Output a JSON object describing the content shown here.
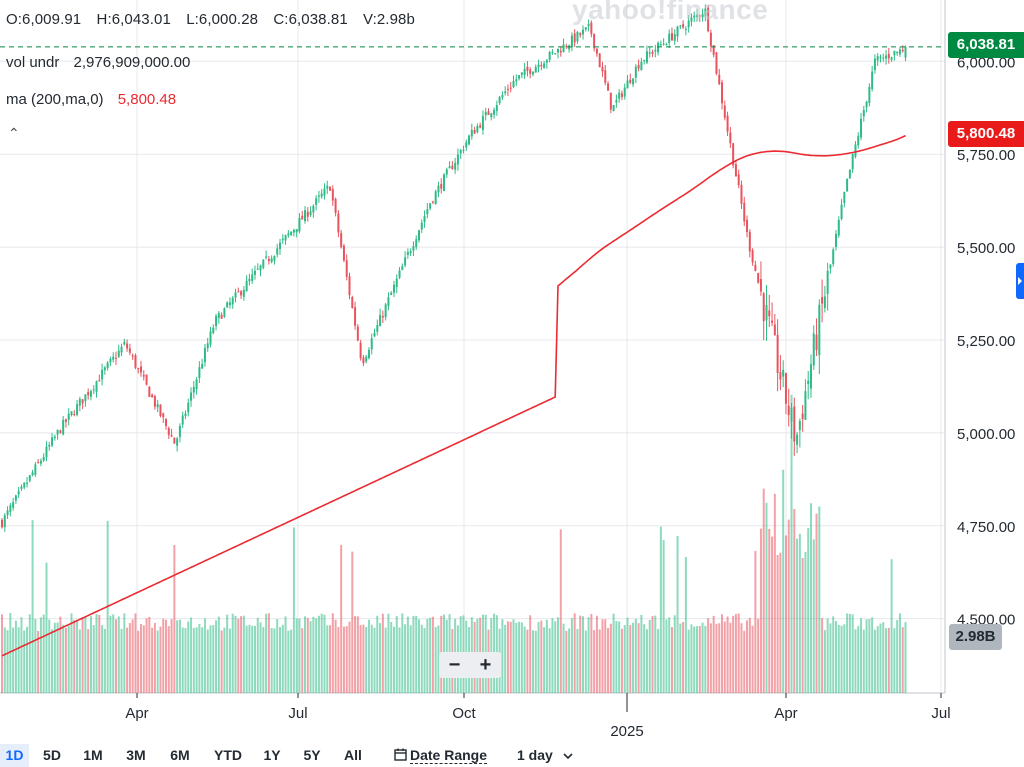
{
  "watermark": "yahoo!finance",
  "legend": {
    "open": "O:6,009.91",
    "high": "H:6,043.01",
    "low": "L:6,000.28",
    "close": "C:6,038.81",
    "volume": "V:2.98b",
    "vol_label": "vol undr",
    "vol_value": "2,976,909,000.00",
    "ma_label": "ma (200,ma,0)",
    "ma_value": "5,800.48",
    "collapse_glyph": "⌃"
  },
  "price_tags": {
    "last": "6,038.81",
    "ma": "5,800.48",
    "volume": "2.98B"
  },
  "zoom": {
    "out": "−",
    "in": "+"
  },
  "toolbar": {
    "ranges": [
      "1D",
      "5D",
      "1M",
      "3M",
      "6M",
      "YTD",
      "1Y",
      "5Y",
      "All"
    ],
    "active_range": "1D",
    "date_range_icon": "calendar-icon",
    "date_range": "Date Range",
    "interval": "1 day",
    "interval_icon": "chevron-down-icon"
  },
  "colors": {
    "up": "#2fbb86",
    "down": "#e8545e",
    "ma": "#eb2a31",
    "last_tag": "#008940",
    "ma_tag": "#e91a1a",
    "grid": "#e6e8eb"
  },
  "chart_data": {
    "type": "candlestick",
    "instrument_note": "daily OHLC with volume and 200-day moving average",
    "y_axis": {
      "ticks": [
        "4,500.00",
        "4,750.00",
        "5,000.00",
        "5,250.00",
        "5,500.00",
        "5,750.00",
        "6,000.00"
      ],
      "tick_values": [
        4500,
        4750,
        5000,
        5250,
        5500,
        5750,
        6000
      ],
      "range": [
        4300,
        6165
      ]
    },
    "x_axis": {
      "ticks": [
        "Apr",
        "Jul",
        "Oct",
        "2025",
        "Apr",
        "Jul"
      ],
      "year_label": "2025"
    },
    "series_description": "Approximate closes sampled weekly",
    "close_keypoints": [
      {
        "t": "2024-01",
        "close": 4760
      },
      {
        "t": "2024-02",
        "close": 5010
      },
      {
        "t": "2024-03-end",
        "close": 5240
      },
      {
        "t": "2024-04-19",
        "close": 4970
      },
      {
        "t": "2024-05",
        "close": 5300
      },
      {
        "t": "2024-07-16",
        "close": 5665
      },
      {
        "t": "2024-08-05",
        "close": 5190
      },
      {
        "t": "2024-09",
        "close": 5620
      },
      {
        "t": "2024-10",
        "close": 5800
      },
      {
        "t": "2024-11",
        "close": 5950
      },
      {
        "t": "2024-12-06",
        "close": 6090
      },
      {
        "t": "2024-12-18",
        "close": 5870
      },
      {
        "t": "2025-01",
        "close": 6000
      },
      {
        "t": "2025-02-19",
        "close": 6140
      },
      {
        "t": "2025-03-13",
        "close": 5520
      },
      {
        "t": "2025-04-08",
        "close": 4980
      },
      {
        "t": "2025-05",
        "close": 5650
      },
      {
        "t": "2025-06-06",
        "close": 6000
      },
      {
        "t": "2025-06-last",
        "close": 6038.81
      }
    ],
    "last": {
      "open": 6009.91,
      "high": 6043.01,
      "low": 6000.28,
      "close": 6038.81,
      "volume": 2976909000
    },
    "moving_average": {
      "name": "ma (200,ma,0)",
      "last": 5800.48
    }
  }
}
